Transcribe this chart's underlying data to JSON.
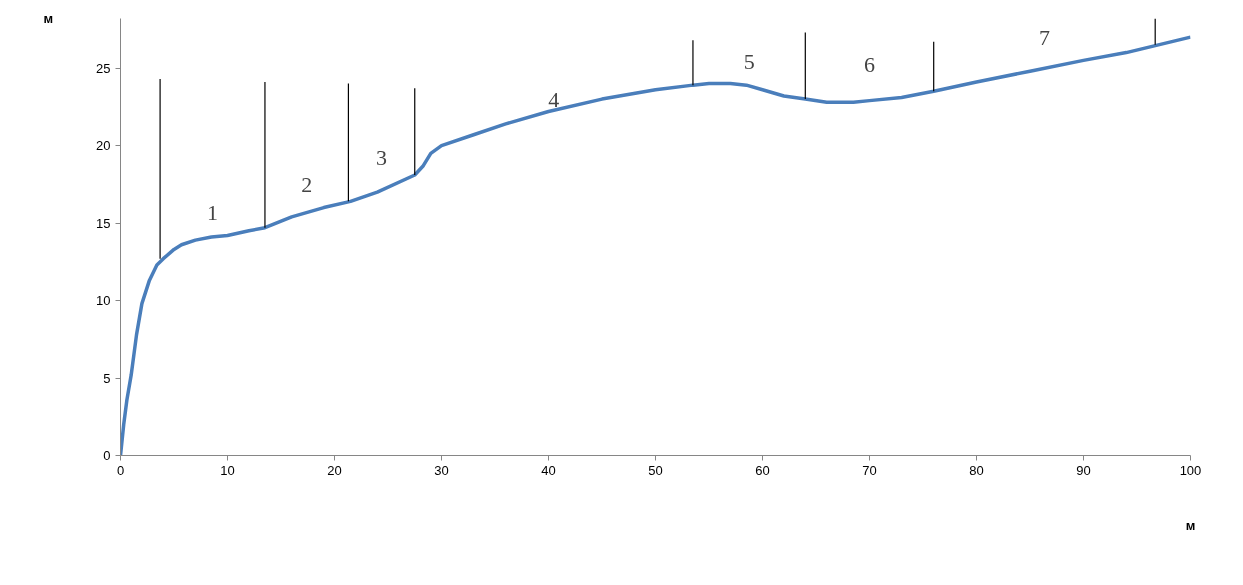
{
  "chart_data": {
    "type": "line",
    "xlabel": "м",
    "ylabel": "м",
    "xlim": [
      0,
      100
    ],
    "ylim": [
      0,
      28.2
    ],
    "xticks": [
      0,
      10,
      20,
      30,
      40,
      50,
      60,
      70,
      80,
      90,
      100
    ],
    "yticks": [
      0,
      5,
      10,
      15,
      20,
      25
    ],
    "grid": false,
    "marker": "none",
    "line_style": "solid",
    "series": [
      {
        "color": "#4a7ebb",
        "x": [
          0,
          0.3,
          0.6,
          1,
          1.5,
          2,
          2.7,
          3.4,
          4,
          5,
          5.7,
          7,
          8.5,
          10,
          12,
          13.5,
          16,
          19,
          21.5,
          24,
          27.5,
          28.3,
          29,
          30,
          33,
          36,
          40,
          45,
          50,
          53.5,
          55,
          57,
          58.5,
          60,
          62,
          64,
          66,
          67,
          68.5,
          70,
          73,
          76,
          80,
          85,
          90,
          94,
          97,
          100
        ],
        "values": [
          0,
          2,
          3.6,
          5.2,
          7.8,
          9.8,
          11.3,
          12.3,
          12.7,
          13.3,
          13.6,
          13.9,
          14.1,
          14.2,
          14.5,
          14.7,
          15.4,
          16,
          16.4,
          17,
          18.1,
          18.7,
          19.5,
          20,
          20.7,
          21.4,
          22.2,
          23.0,
          23.6,
          23.9,
          24,
          24,
          23.9,
          23.6,
          23.2,
          23.0,
          22.8,
          22.8,
          22.8,
          22.9,
          23.1,
          23.5,
          24.1,
          24.8,
          25.5,
          26.0,
          26.5,
          27
        ]
      },
      {
        "color": "#000000",
        "x": [
          3.7,
          3.7
        ],
        "values": [
          12.7,
          24.3
        ]
      },
      {
        "color": "#000000",
        "x": [
          13.5,
          13.5
        ],
        "values": [
          14.7,
          24.1
        ]
      },
      {
        "color": "#000000",
        "x": [
          21.3,
          21.3
        ],
        "values": [
          16.4,
          24.0
        ]
      },
      {
        "color": "#000000",
        "x": [
          27.5,
          27.5
        ],
        "values": [
          18.1,
          23.7
        ]
      },
      {
        "color": "#000000",
        "x": [
          53.5,
          53.5
        ],
        "values": [
          23.9,
          26.8
        ]
      },
      {
        "color": "#000000",
        "x": [
          64,
          64
        ],
        "values": [
          23.0,
          27.3
        ]
      },
      {
        "color": "#000000",
        "x": [
          76,
          76
        ],
        "values": [
          23.5,
          26.7
        ]
      },
      {
        "color": "#000000",
        "x": [
          96.7,
          96.7
        ],
        "values": [
          26.5,
          28.2
        ]
      }
    ],
    "annotations": [
      "1",
      "2",
      "3",
      "4",
      "5",
      "6",
      "7"
    ]
  }
}
